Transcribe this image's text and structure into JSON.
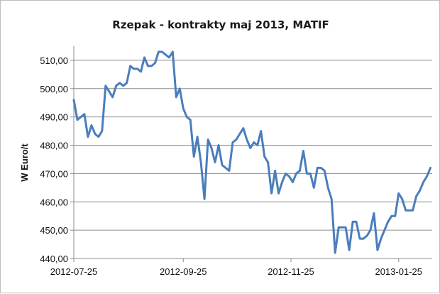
{
  "chart_data": {
    "type": "line",
    "title": "Rzepak - kontrakty maj 2013, MATIF",
    "ylabel": "W Euro/t",
    "xlabel": "",
    "ylim": [
      440,
      515
    ],
    "yticks": [
      440,
      450,
      460,
      470,
      480,
      490,
      500,
      510
    ],
    "ytick_labels": [
      "440,00",
      "450,00",
      "460,00",
      "470,00",
      "480,00",
      "490,00",
      "500,00",
      "510,00"
    ],
    "xticks": [
      "2012-07-25",
      "2012-09-25",
      "2012-11-25",
      "2013-01-25"
    ],
    "xlim": [
      "2012-07-25",
      "2013-02-13"
    ],
    "grid": true,
    "legend": "none",
    "line_color": "#4a7ebb",
    "series": [
      {
        "x": [
          "2012-07-25",
          "2012-07-27",
          "2012-07-29",
          "2012-07-31",
          "2012-08-02",
          "2012-08-04",
          "2012-08-06",
          "2012-08-08",
          "2012-08-10",
          "2012-08-12",
          "2012-08-14",
          "2012-08-16",
          "2012-08-18",
          "2012-08-20",
          "2012-08-22",
          "2012-08-24",
          "2012-08-26",
          "2012-08-28",
          "2012-08-30",
          "2012-09-01",
          "2012-09-03",
          "2012-09-05",
          "2012-09-07",
          "2012-09-09",
          "2012-09-11",
          "2012-09-13",
          "2012-09-15",
          "2012-09-17",
          "2012-09-19",
          "2012-09-21",
          "2012-09-23",
          "2012-09-25",
          "2012-09-27",
          "2012-09-29",
          "2012-10-01",
          "2012-10-03",
          "2012-10-05",
          "2012-10-07",
          "2012-10-09",
          "2012-10-11",
          "2012-10-13",
          "2012-10-15",
          "2012-10-17",
          "2012-10-19",
          "2012-10-21",
          "2012-10-23",
          "2012-10-25",
          "2012-10-27",
          "2012-10-29",
          "2012-10-31",
          "2012-11-02",
          "2012-11-04",
          "2012-11-06",
          "2012-11-08",
          "2012-11-10",
          "2012-11-12",
          "2012-11-14",
          "2012-11-16",
          "2012-11-18",
          "2012-11-20",
          "2012-11-22",
          "2012-11-24",
          "2012-11-26",
          "2012-11-28",
          "2012-11-30",
          "2012-12-02",
          "2012-12-04",
          "2012-12-06",
          "2012-12-08",
          "2012-12-10",
          "2012-12-12",
          "2012-12-14",
          "2012-12-16",
          "2012-12-18",
          "2012-12-20",
          "2012-12-22",
          "2012-12-24",
          "2012-12-26",
          "2012-12-28",
          "2012-12-30",
          "2013-01-01",
          "2013-01-03",
          "2013-01-05",
          "2013-01-07",
          "2013-01-09",
          "2013-01-11",
          "2013-01-13",
          "2013-01-15",
          "2013-01-17",
          "2013-01-19",
          "2013-01-21",
          "2013-01-23",
          "2013-01-25",
          "2013-01-27",
          "2013-01-29",
          "2013-01-31",
          "2013-02-02",
          "2013-02-04",
          "2013-02-06",
          "2013-02-08",
          "2013-02-10",
          "2013-02-12"
        ],
        "values": [
          496,
          489,
          490,
          491,
          483,
          487,
          484,
          483,
          485,
          501,
          499,
          497,
          501,
          502,
          501,
          502,
          508,
          507,
          507,
          506,
          511,
          508,
          508,
          509,
          513,
          513,
          512,
          511,
          513,
          497,
          500,
          493,
          490,
          489,
          476,
          483,
          474,
          461,
          482,
          479,
          474,
          480,
          473,
          472,
          471,
          481,
          482,
          484,
          486,
          482,
          479,
          481,
          480,
          485,
          476,
          474,
          463,
          471,
          463,
          467,
          470,
          469,
          467,
          470,
          471,
          478,
          470,
          470,
          465,
          472,
          472,
          471,
          465,
          461,
          442,
          451,
          451,
          451,
          443,
          453,
          453,
          447,
          447,
          448,
          450,
          456,
          443,
          447,
          450,
          453,
          455,
          455,
          463,
          461,
          457,
          457,
          457,
          462,
          464,
          467,
          469,
          472
        ]
      }
    ]
  }
}
